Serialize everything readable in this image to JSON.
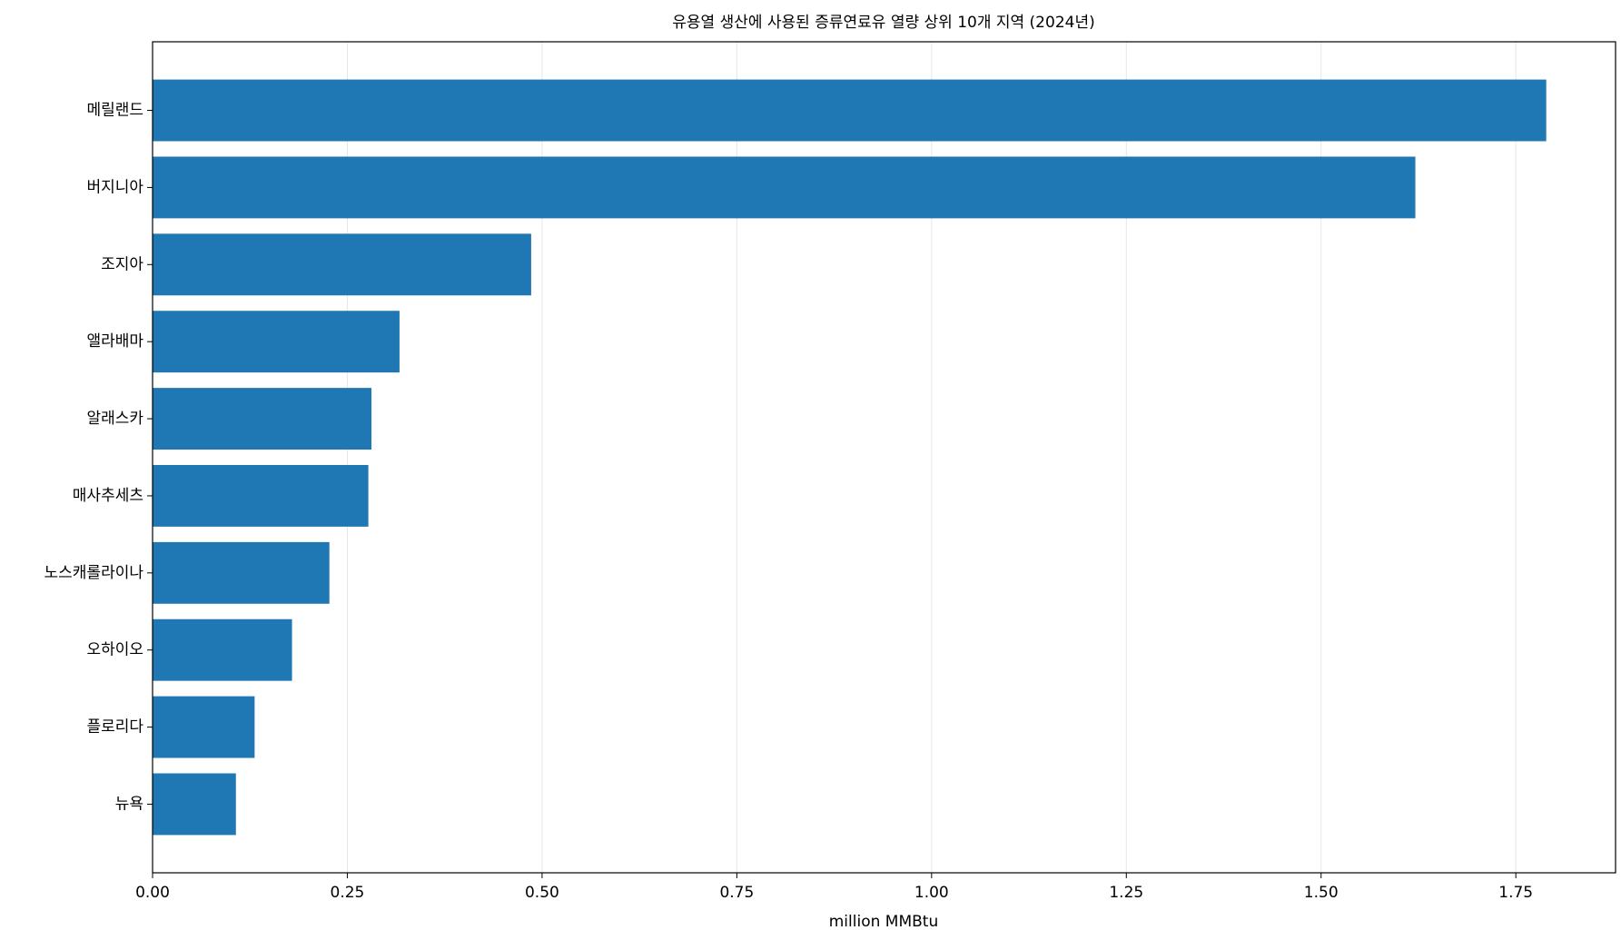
{
  "chart_data": {
    "type": "barh",
    "title": "유용열 생산에 사용된 증류연료유 열량 상위 10개 지역 (2024년)",
    "xlabel": "million MMBtu",
    "categories": [
      "메릴랜드",
      "버지니아",
      "조지아",
      "앨라배마",
      "알래스카",
      "매사추세츠",
      "노스캐롤라이나",
      "오하이오",
      "플로리다",
      "뉴욕"
    ],
    "values": [
      1.789,
      1.621,
      0.486,
      0.317,
      0.281,
      0.277,
      0.227,
      0.179,
      0.131,
      0.107
    ],
    "color": "#1f77b4",
    "xlim": [
      0,
      1.878
    ],
    "xticks": [
      {
        "value": 0,
        "label": "0.00"
      },
      {
        "value": 0.25,
        "label": "0.25"
      },
      {
        "value": 0.5,
        "label": "0.50"
      },
      {
        "value": 0.75,
        "label": "0.75"
      },
      {
        "value": 1,
        "label": "1.00"
      },
      {
        "value": 1.25,
        "label": "1.25"
      },
      {
        "value": 1.5,
        "label": "1.50"
      },
      {
        "value": 1.75,
        "label": "1.75"
      }
    ],
    "grid": true
  }
}
